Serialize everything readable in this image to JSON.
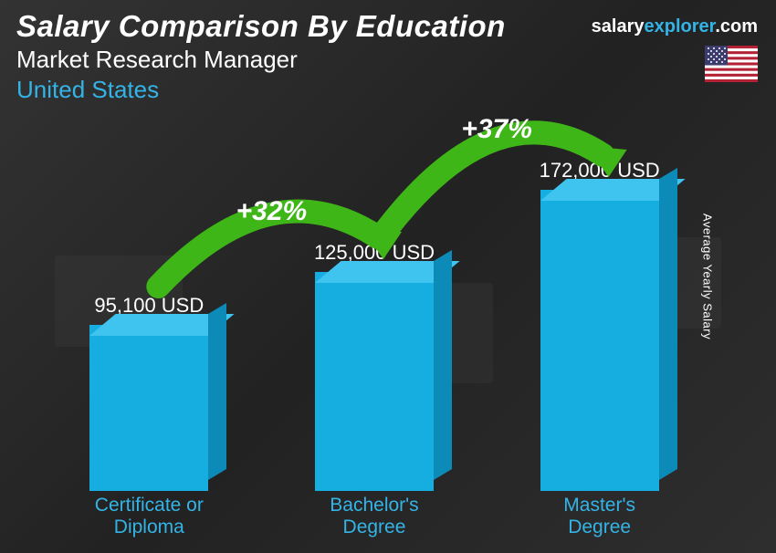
{
  "header": {
    "title": "Salary Comparison By Education",
    "subtitle": "Market Research Manager",
    "country": "United States"
  },
  "brand": {
    "part1": "salary",
    "part2": "explorer",
    "part3": ".com"
  },
  "flag": {
    "stripe_red": "#b22234",
    "stripe_white": "#ffffff",
    "canton": "#3c3b6e"
  },
  "yaxis_label": "Average Yearly Salary",
  "chart": {
    "type": "bar",
    "bar_color_front": "#16aee0",
    "bar_color_top": "#3fc4ef",
    "bar_color_side": "#0d8bb8",
    "label_color": "#34b4e6",
    "value_color": "#ffffff",
    "arc_color": "#3fb618",
    "arrow_color": "#3fb618",
    "pct_color": "#ffffff",
    "background_color": "#2a2a2a",
    "title_fontsize": 33,
    "label_fontsize": 21,
    "value_fontsize": 22,
    "pct_fontsize": 30,
    "max_value": 172000,
    "bars": [
      {
        "label_line1": "Certificate or",
        "label_line2": "Diploma",
        "value": 95100,
        "value_label": "95,100 USD"
      },
      {
        "label_line1": "Bachelor's",
        "label_line2": "Degree",
        "value": 125000,
        "value_label": "125,000 USD"
      },
      {
        "label_line1": "Master's",
        "label_line2": "Degree",
        "value": 172000,
        "value_label": "172,000 USD"
      }
    ],
    "increases": [
      {
        "from": 0,
        "to": 1,
        "pct": "+32%"
      },
      {
        "from": 1,
        "to": 2,
        "pct": "+37%"
      }
    ]
  }
}
